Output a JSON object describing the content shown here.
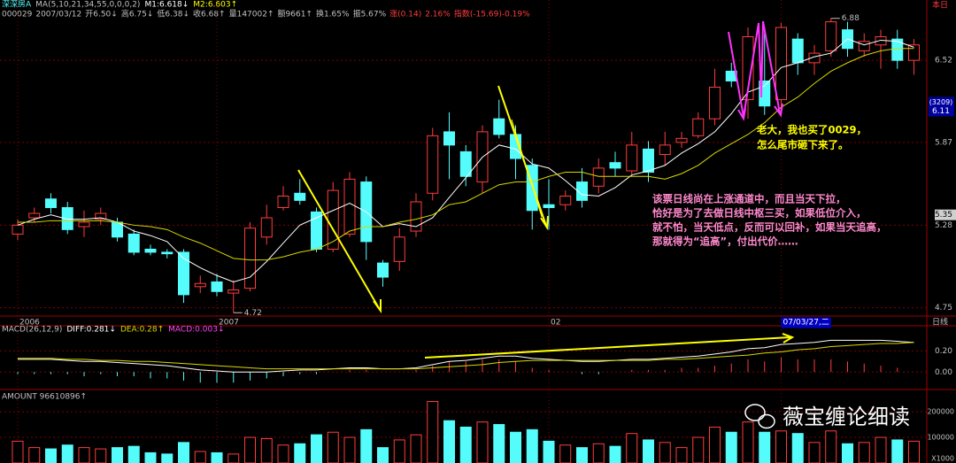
{
  "header": {
    "stock": "深深房A",
    "ma_params": "MA(5,10,21,34,55,0,0,0,2)",
    "m1": "M1:6.618↓",
    "m2": "M2:6.603↑",
    "quote": [
      "000029",
      "2007/03/12",
      "开6.50↓",
      "高6.75↓",
      "低6.38↓",
      "收6.68↑",
      "量147002↑",
      "额9661↑",
      "换1.65%",
      "振5.67%",
      "涨(0.14)",
      "2.16%",
      "指数(-15.69)-0.19%"
    ],
    "period": "本日",
    "period_label": "日线"
  },
  "annotations": {
    "question": [
      "老大，我也买了0029，",
      "怎么尾市砸下来了。"
    ],
    "answer": [
      "该票日线尚在上涨通道中，而且当天下拉，",
      "恰好是为了去做日线中枢三买，如果低位介入，",
      "就不怕，当天低点，反而可以回补，如果当天追高，",
      "那就得为“追高”，付出代价……"
    ]
  },
  "watermark": "薇宝缠论细读",
  "chart_data": [
    {
      "type": "candlestick",
      "categories": [
        "2006",
        null,
        null,
        null,
        null,
        null,
        null,
        null,
        null,
        null,
        null,
        null,
        "2007",
        null,
        null,
        null,
        null,
        null,
        null,
        null,
        null,
        null,
        null,
        null,
        null,
        null,
        null,
        null,
        null,
        null,
        null,
        null,
        "02",
        null,
        null,
        null,
        null,
        null,
        null,
        null,
        null,
        null,
        null,
        null,
        null,
        null,
        "07/03/27,二",
        null,
        null,
        null,
        null,
        null,
        null,
        null,
        null
      ],
      "open": [
        5.22,
        5.33,
        5.46,
        5.4,
        5.27,
        5.32,
        5.3,
        5.22,
        5.12,
        5.1,
        5.1,
        4.88,
        4.91,
        4.84,
        4.87,
        5.2,
        5.4,
        5.5,
        5.37,
        5.12,
        5.22,
        5.58,
        5.03,
        5.04,
        5.24,
        5.5,
        5.95,
        5.8,
        5.58,
        6.05,
        5.93,
        5.7,
        5.42,
        5.42,
        5.58,
        5.55,
        5.72,
        5.66,
        5.82,
        5.78,
        5.87,
        5.92,
        6.05,
        6.43,
        6.2,
        6.35,
        6.2,
        6.7,
        6.5,
        6.6,
        6.78,
        6.6,
        6.65,
        6.7,
        6.52
      ],
      "high": [
        5.32,
        5.4,
        5.5,
        5.44,
        5.38,
        5.4,
        5.33,
        5.25,
        5.15,
        5.12,
        5.12,
        4.95,
        4.96,
        4.92,
        5.3,
        5.42,
        5.55,
        5.6,
        5.4,
        5.58,
        5.65,
        5.62,
        5.05,
        5.26,
        5.5,
        5.98,
        6.1,
        5.85,
        6.0,
        6.2,
        6.0,
        5.75,
        5.6,
        5.52,
        5.68,
        5.75,
        5.8,
        5.95,
        5.88,
        5.95,
        5.95,
        6.1,
        6.45,
        6.5,
        6.8,
        6.8,
        6.84,
        6.75,
        6.65,
        6.88,
        6.85,
        6.75,
        6.78,
        6.78,
        6.7
      ],
      "low": [
        5.18,
        5.3,
        5.36,
        5.22,
        5.2,
        5.28,
        5.17,
        5.08,
        5.08,
        5.06,
        4.78,
        4.84,
        4.82,
        4.72,
        4.85,
        5.15,
        5.38,
        5.42,
        5.1,
        5.1,
        5.2,
        5.05,
        4.88,
        4.98,
        5.2,
        5.45,
        5.6,
        5.55,
        5.5,
        5.9,
        5.6,
        5.25,
        5.25,
        5.38,
        5.4,
        5.5,
        5.62,
        5.62,
        5.58,
        5.7,
        5.83,
        5.9,
        6.0,
        6.3,
        6.05,
        6.08,
        6.1,
        6.4,
        6.4,
        6.55,
        6.55,
        6.55,
        6.45,
        6.45,
        6.4
      ],
      "close": [
        5.28,
        5.36,
        5.4,
        5.25,
        5.3,
        5.36,
        5.2,
        5.1,
        5.1,
        5.09,
        4.83,
        4.9,
        4.85,
        4.86,
        5.26,
        5.33,
        5.48,
        5.45,
        5.12,
        5.52,
        5.6,
        5.17,
        4.94,
        5.2,
        5.44,
        5.92,
        5.85,
        5.62,
        5.95,
        5.93,
        5.75,
        5.38,
        5.4,
        5.48,
        5.45,
        5.68,
        5.68,
        5.85,
        5.65,
        5.85,
        5.9,
        6.05,
        6.3,
        6.35,
        6.72,
        6.15,
        6.8,
        6.5,
        6.58,
        6.85,
        6.62,
        6.68,
        6.72,
        6.52,
        6.65
      ],
      "up_color": "#ff3c3c",
      "down_color": "#54fcfc",
      "lines": [
        {
          "color": "#ffffff",
          "values": [
            5.28,
            5.32,
            5.35,
            5.32,
            5.32,
            5.33,
            5.3,
            5.24,
            5.21,
            5.17,
            5.06,
            5.0,
            4.95,
            4.91,
            4.94,
            5.04,
            5.16,
            5.28,
            5.33,
            5.38,
            5.43,
            5.37,
            5.27,
            5.29,
            5.27,
            5.33,
            5.47,
            5.61,
            5.76,
            5.85,
            5.82,
            5.71,
            5.68,
            5.59,
            5.49,
            5.48,
            5.54,
            5.63,
            5.66,
            5.7,
            5.79,
            5.86,
            5.95,
            6.09,
            6.26,
            6.31,
            6.46,
            6.5,
            6.55,
            6.58,
            6.7,
            6.65,
            6.69,
            6.68,
            6.63
          ]
        },
        {
          "color": "#d8d800",
          "values": [
            5.3,
            5.3,
            5.31,
            5.31,
            5.31,
            5.31,
            5.3,
            5.28,
            5.27,
            5.25,
            5.2,
            5.16,
            5.11,
            5.06,
            5.05,
            5.05,
            5.07,
            5.1,
            5.12,
            5.17,
            5.24,
            5.27,
            5.27,
            5.3,
            5.32,
            5.35,
            5.42,
            5.44,
            5.5,
            5.56,
            5.58,
            5.58,
            5.62,
            5.65,
            5.65,
            5.62,
            5.62,
            5.62,
            5.62,
            5.6,
            5.64,
            5.7,
            5.79,
            5.86,
            5.93,
            6.02,
            6.14,
            6.22,
            6.33,
            6.43,
            6.5,
            6.56,
            6.6,
            6.62,
            6.62
          ]
        }
      ],
      "log_scale": true,
      "ylim": [
        4.7,
        6.98
      ],
      "yticks": [
        4.75,
        5.28,
        5.87,
        6.52
      ],
      "grid": true,
      "high_marker": 6.88,
      "low_marker": 4.72,
      "volume_tag": "(3209)",
      "last_price": 6.11,
      "cursor_price": 5.35
    },
    {
      "type": "line",
      "title": "MACD(26,12,9)",
      "series": [
        {
          "name": "DIFF:0.281↓",
          "color": "#ffffff",
          "values": [
            0.12,
            0.12,
            0.12,
            0.11,
            0.1,
            0.1,
            0.09,
            0.08,
            0.07,
            0.06,
            0.04,
            0.02,
            0.01,
            0.0,
            0.0,
            0.0,
            0.01,
            0.02,
            0.02,
            0.03,
            0.04,
            0.04,
            0.03,
            0.03,
            0.04,
            0.07,
            0.1,
            0.11,
            0.13,
            0.15,
            0.15,
            0.13,
            0.12,
            0.11,
            0.1,
            0.1,
            0.11,
            0.12,
            0.12,
            0.13,
            0.14,
            0.15,
            0.17,
            0.19,
            0.22,
            0.23,
            0.26,
            0.27,
            0.28,
            0.3,
            0.3,
            0.3,
            0.3,
            0.29,
            0.28
          ]
        },
        {
          "name": "DEA:0.28↑",
          "color": "#d8d800",
          "values": [
            0.13,
            0.13,
            0.13,
            0.12,
            0.12,
            0.11,
            0.11,
            0.1,
            0.1,
            0.09,
            0.08,
            0.07,
            0.06,
            0.05,
            0.04,
            0.03,
            0.03,
            0.03,
            0.03,
            0.03,
            0.03,
            0.03,
            0.03,
            0.03,
            0.03,
            0.04,
            0.05,
            0.06,
            0.07,
            0.09,
            0.1,
            0.11,
            0.11,
            0.11,
            0.11,
            0.11,
            0.11,
            0.11,
            0.11,
            0.12,
            0.12,
            0.13,
            0.14,
            0.15,
            0.16,
            0.18,
            0.19,
            0.21,
            0.22,
            0.24,
            0.25,
            0.26,
            0.27,
            0.27,
            0.28
          ]
        }
      ],
      "histogram": {
        "name": "MACD:0.003↓",
        "color": "#ff44ff",
        "up_color": "#ff3c3c",
        "down_color": "#54fcfc",
        "values": [
          -0.02,
          -0.02,
          -0.02,
          -0.02,
          -0.04,
          -0.02,
          -0.04,
          -0.04,
          -0.06,
          -0.06,
          -0.08,
          -0.1,
          -0.1,
          -0.1,
          -0.08,
          -0.06,
          -0.04,
          -0.02,
          -0.02,
          0.0,
          0.02,
          0.02,
          0.0,
          0.0,
          0.02,
          0.06,
          0.1,
          0.1,
          0.12,
          0.12,
          0.1,
          0.04,
          0.02,
          0.0,
          -0.02,
          -0.02,
          0.0,
          0.02,
          0.02,
          0.02,
          0.04,
          0.04,
          0.06,
          0.08,
          0.12,
          0.1,
          0.14,
          0.12,
          0.12,
          0.12,
          0.1,
          0.08,
          0.06,
          0.04,
          0.0
        ]
      },
      "ylim": [
        -0.14,
        0.42
      ],
      "yticks": [
        {
          "value": 0.2,
          "label": "0.20"
        },
        {
          "value": 0,
          "label": "0.00"
        }
      ]
    },
    {
      "type": "bar",
      "title": "AMOUNT 96610896↑",
      "values": [
        85000,
        60000,
        55000,
        70000,
        60000,
        55000,
        60000,
        65000,
        40000,
        35000,
        80000,
        45000,
        40000,
        35000,
        100000,
        95000,
        70000,
        75000,
        110000,
        120000,
        100000,
        130000,
        60000,
        90000,
        110000,
        240000,
        165000,
        140000,
        160000,
        150000,
        120000,
        130000,
        85000,
        70000,
        60000,
        75000,
        65000,
        115000,
        90000,
        80000,
        60000,
        100000,
        140000,
        120000,
        160000,
        120000,
        125000,
        115000,
        80000,
        125000,
        75000,
        80000,
        100000,
        90000,
        85000
      ],
      "ylim": [
        0,
        252000
      ],
      "yticks": [
        100000,
        200000
      ],
      "unit_label": "X1000"
    }
  ]
}
